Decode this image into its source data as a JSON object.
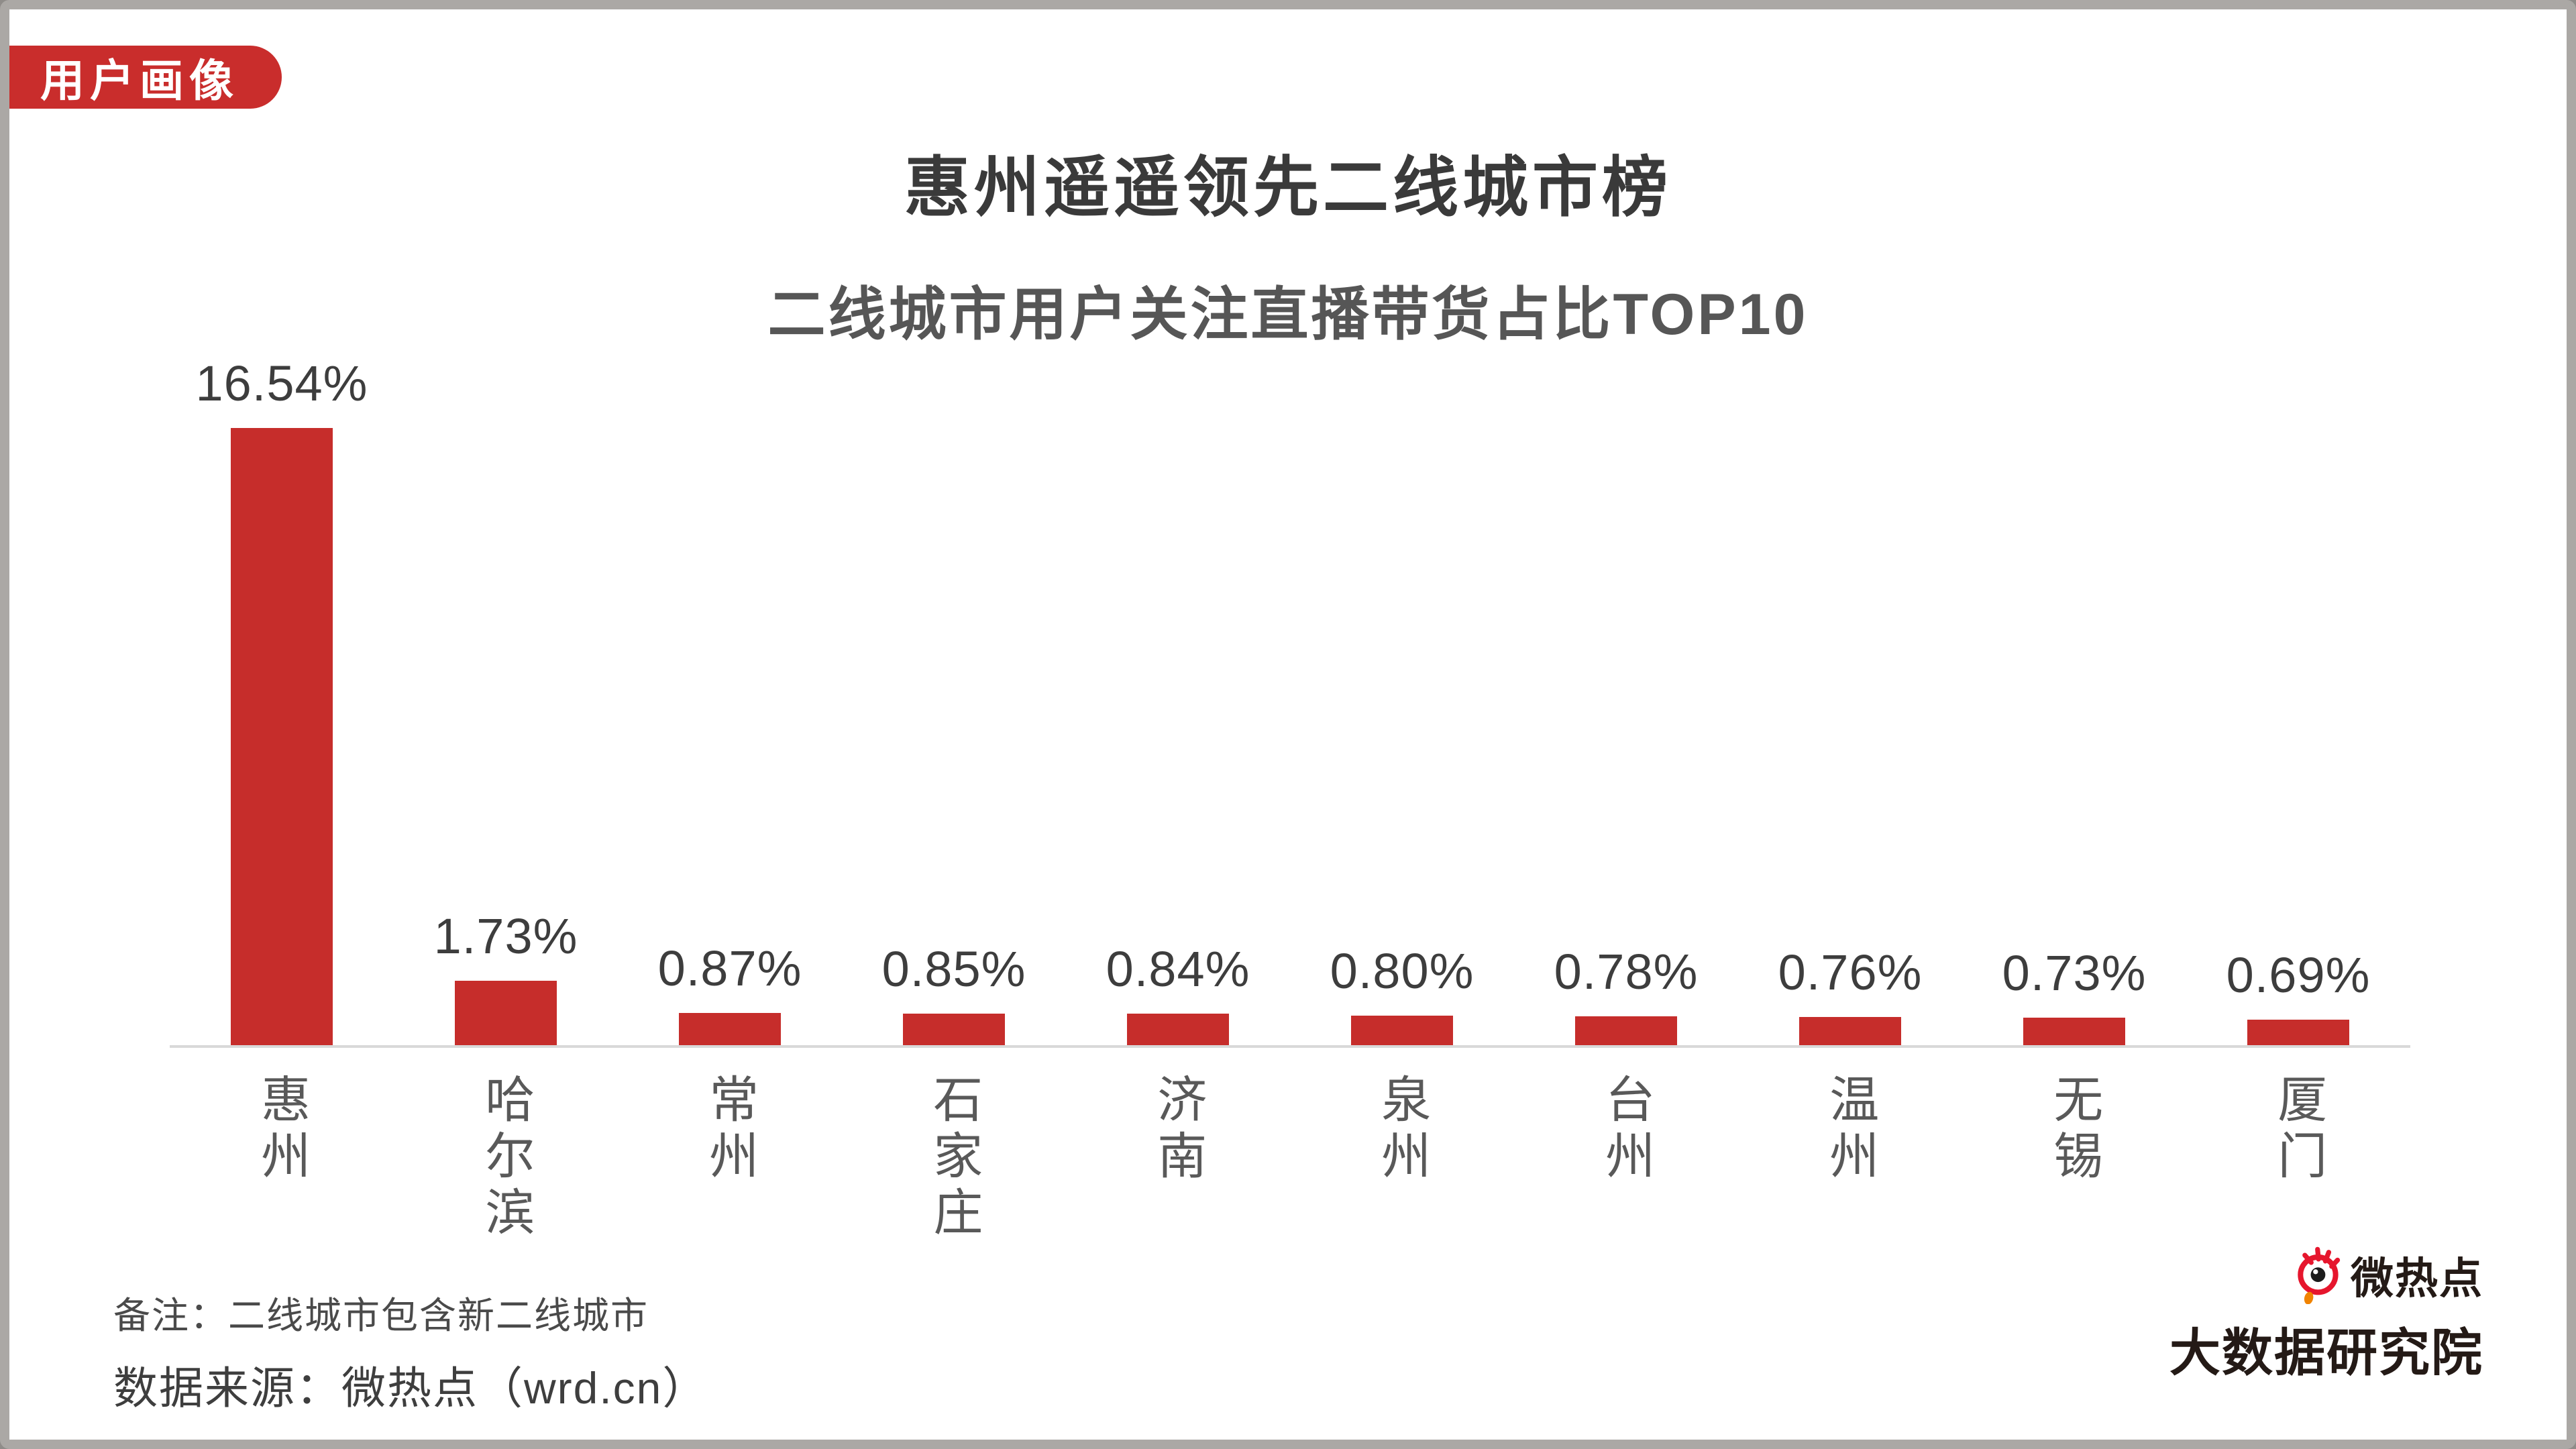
{
  "badge": {
    "label": "用户画像"
  },
  "header": {
    "title": "惠州遥遥领先二线城市榜",
    "subtitle": "二线城市用户关注直播带货占比TOP10"
  },
  "chart_data": {
    "type": "bar",
    "categories": [
      "惠州",
      "哈尔滨",
      "常州",
      "石家庄",
      "济南",
      "泉州",
      "台州",
      "温州",
      "无锡",
      "厦门"
    ],
    "values": [
      16.54,
      1.73,
      0.87,
      0.85,
      0.84,
      0.8,
      0.78,
      0.76,
      0.73,
      0.69
    ],
    "value_labels": [
      "16.54%",
      "1.73%",
      "0.87%",
      "0.85%",
      "0.84%",
      "0.80%",
      "0.78%",
      "0.76%",
      "0.73%",
      "0.69%"
    ],
    "title": "惠州遥遥领先二线城市榜",
    "subtitle": "二线城市用户关注直播带货占比TOP10",
    "xlabel": "",
    "ylabel": "",
    "ylim": [
      0,
      17
    ],
    "grid": false,
    "legend": false,
    "label_position": "above-bars",
    "x_label_orientation": "vertical",
    "bar_color": "#c62d2b",
    "axis_line_color": "#d9d9d9"
  },
  "footer": {
    "note": "备注：二线城市包含新二线城市",
    "source": "数据来源：微热点（wrd.cn）"
  },
  "logo": {
    "icon": "weibo-eye-icon",
    "line1": "微热点",
    "line2": "大数据研究院"
  },
  "colors": {
    "accent_red": "#c92d2c",
    "bar_red": "#c62d2b",
    "frame_border": "#aba8a5",
    "title_text": "#3a3a3a",
    "subtitle_text": "#565656",
    "axis_line": "#d9d9d9",
    "logo_red": "#e6162d",
    "logo_orange": "#f08300"
  }
}
